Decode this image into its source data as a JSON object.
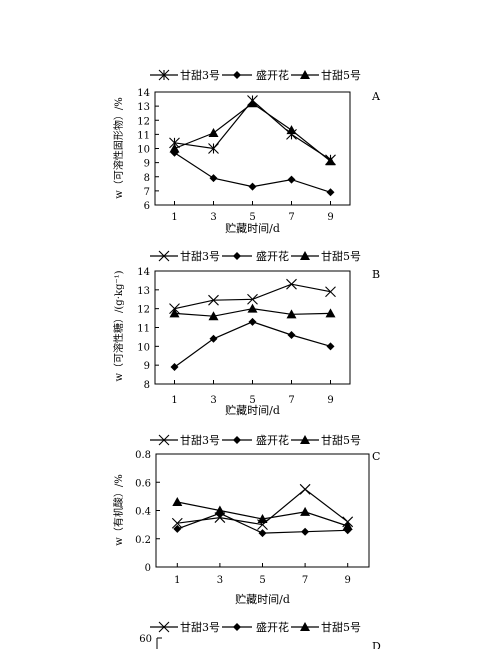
{
  "chart_data": [
    {
      "panel": "A",
      "type": "line",
      "title": "",
      "ylabel": "w（可溶性固形物）/%",
      "xlabel": "贮藏时间/d",
      "x": [
        1,
        3,
        5,
        7,
        9
      ],
      "xlim": [
        0,
        10
      ],
      "ylim": [
        6,
        14
      ],
      "yticks": [
        6,
        7,
        8,
        9,
        10,
        11,
        12,
        13,
        14
      ],
      "grid": false,
      "legend_position": "top",
      "series": [
        {
          "name": "甘甜3号",
          "marker": "star",
          "values": [
            10.4,
            10.0,
            13.4,
            11.0,
            9.2
          ]
        },
        {
          "name": "盛开花",
          "marker": "diamond",
          "values": [
            9.7,
            7.9,
            7.3,
            7.8,
            6.9
          ]
        },
        {
          "name": "甘甜5号",
          "marker": "triangle",
          "values": [
            10.0,
            11.1,
            13.2,
            11.3,
            9.1
          ]
        }
      ]
    },
    {
      "panel": "B",
      "type": "line",
      "title": "",
      "ylabel": "w（可溶性糖）/(g·kg⁻¹)",
      "xlabel": "贮藏时间/d",
      "x": [
        1,
        3,
        5,
        7,
        9
      ],
      "xlim": [
        0,
        10
      ],
      "ylim": [
        8,
        14
      ],
      "yticks": [
        8,
        9,
        10,
        11,
        12,
        13,
        14
      ],
      "grid": false,
      "legend_position": "top",
      "series": [
        {
          "name": "甘甜3号",
          "marker": "cross",
          "values": [
            12.0,
            12.45,
            12.5,
            13.3,
            12.9
          ]
        },
        {
          "name": "盛开花",
          "marker": "diamond",
          "values": [
            8.9,
            10.4,
            11.3,
            10.6,
            10.0
          ]
        },
        {
          "name": "甘甜5号",
          "marker": "triangle",
          "values": [
            11.75,
            11.6,
            12.0,
            11.7,
            11.75
          ]
        }
      ]
    },
    {
      "panel": "C",
      "type": "line",
      "title": "",
      "ylabel": "w（有机酸）/%",
      "xlabel": "贮藏时间/d",
      "x": [
        1,
        3,
        5,
        7,
        9
      ],
      "xlim": [
        0,
        10
      ],
      "ylim": [
        0,
        0.8
      ],
      "yticks": [
        0,
        0.2,
        0.4,
        0.6,
        0.8
      ],
      "grid": false,
      "legend_position": "top",
      "series": [
        {
          "name": "甘甜3号",
          "marker": "cross",
          "values": [
            0.31,
            0.35,
            0.3,
            0.55,
            0.32
          ]
        },
        {
          "name": "盛开花",
          "marker": "diamond",
          "values": [
            0.27,
            0.38,
            0.24,
            0.25,
            0.26
          ]
        },
        {
          "name": "甘甜5号",
          "marker": "triangle",
          "values": [
            0.46,
            0.4,
            0.34,
            0.39,
            0.29
          ]
        }
      ]
    },
    {
      "panel": "D",
      "type": "line",
      "title": "",
      "ylabel": "",
      "xlabel": "",
      "x": [],
      "ylim_top": 60,
      "yticks": [
        60
      ],
      "grid": false,
      "legend_position": "top",
      "series": [
        {
          "name": "甘甜3号",
          "marker": "cross",
          "values": []
        },
        {
          "name": "盛开花",
          "marker": "diamond",
          "values": []
        },
        {
          "name": "甘甜5号",
          "marker": "triangle",
          "values": []
        }
      ]
    }
  ]
}
